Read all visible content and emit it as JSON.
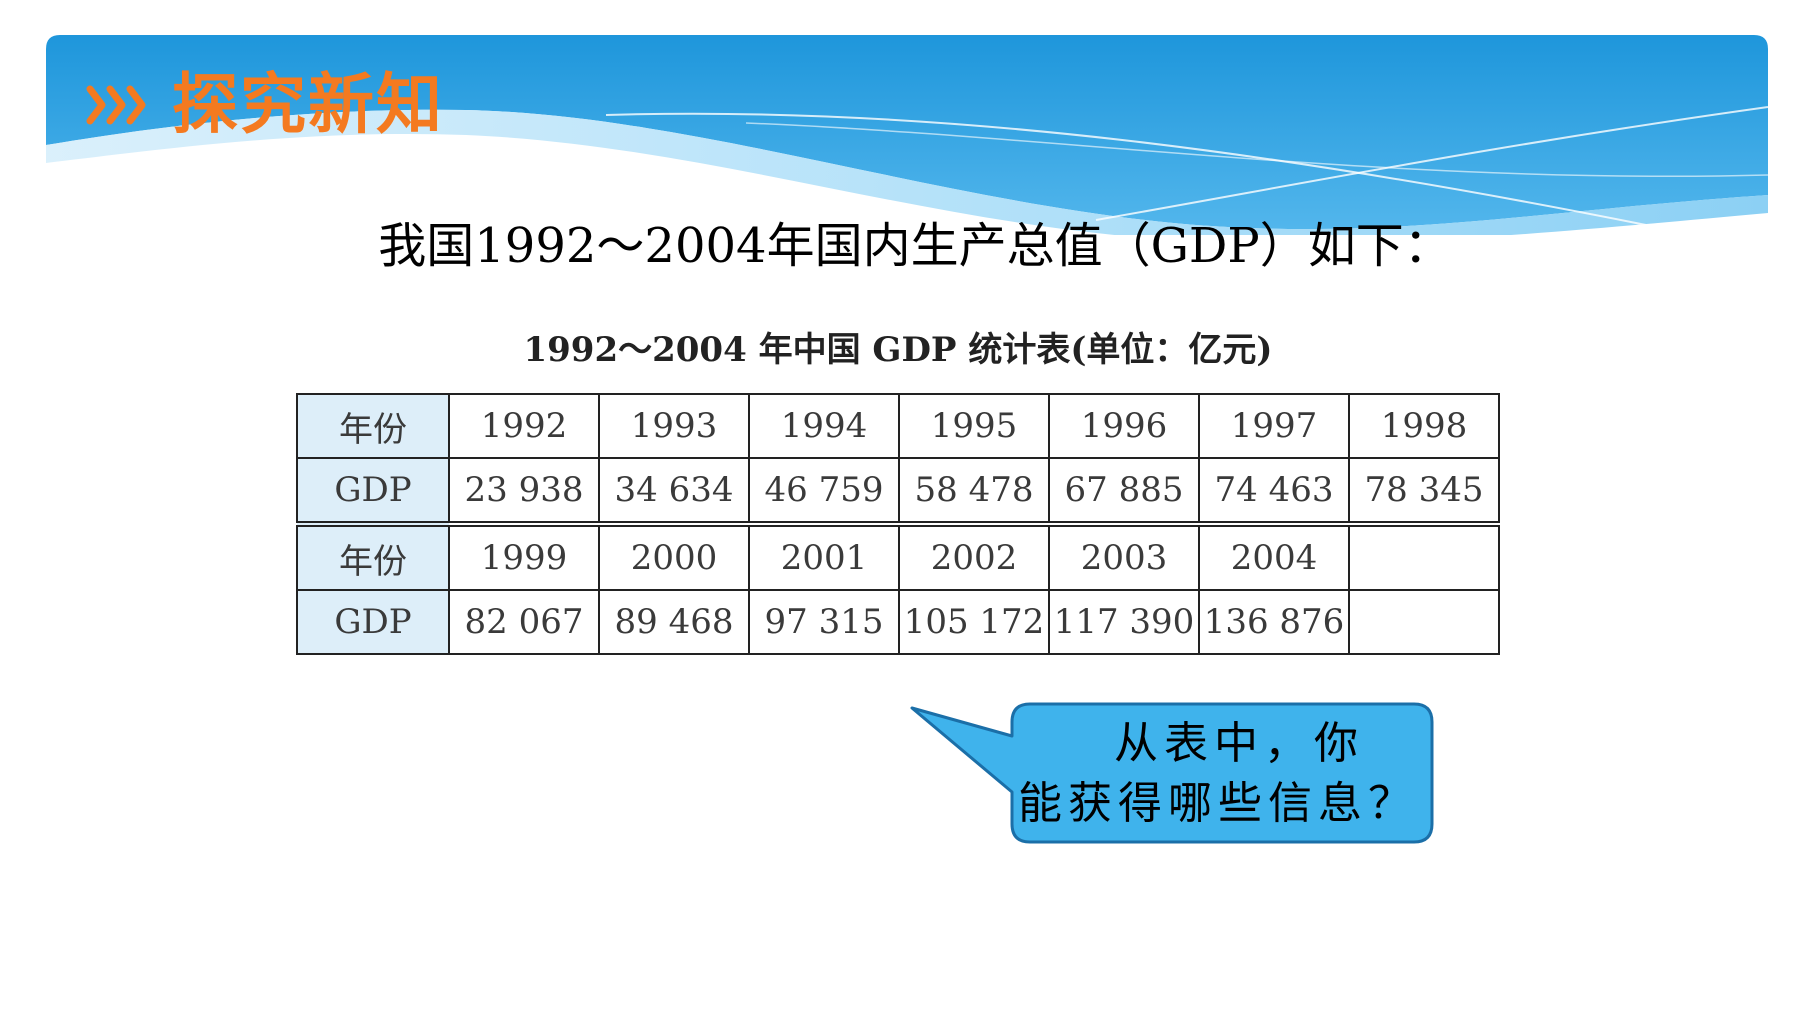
{
  "header": {
    "section_title": "探究新知",
    "colors": {
      "banner_top": "#1e96db",
      "banner_bottom": "#6cc3f0",
      "title_orange": "#f47a20"
    },
    "icon": "triple-chevron-right-icon"
  },
  "intro_text": "我国1992～2004年国内生产总值（GDP）如下：",
  "table": {
    "caption": "1992～2004 年中国 GDP 统计表(单位：亿元)",
    "row_header_year": "年份",
    "row_header_gdp": "GDP",
    "block1": {
      "years": [
        "1992",
        "1993",
        "1994",
        "1995",
        "1996",
        "1997",
        "1998"
      ],
      "gdp": [
        "23 938",
        "34 634",
        "46 759",
        "58 478",
        "67 885",
        "74 463",
        "78 345"
      ]
    },
    "block2": {
      "years": [
        "1999",
        "2000",
        "2001",
        "2002",
        "2003",
        "2004",
        ""
      ],
      "gdp": [
        "82 067",
        "89 468",
        "97 315",
        "105 172",
        "117 390",
        "136 876",
        ""
      ]
    },
    "header_cell_color": "#ddeef9"
  },
  "callout": {
    "line1": "从表中，你",
    "line2": "能获得哪些信息？",
    "fill_color": "#3fb3ec"
  }
}
